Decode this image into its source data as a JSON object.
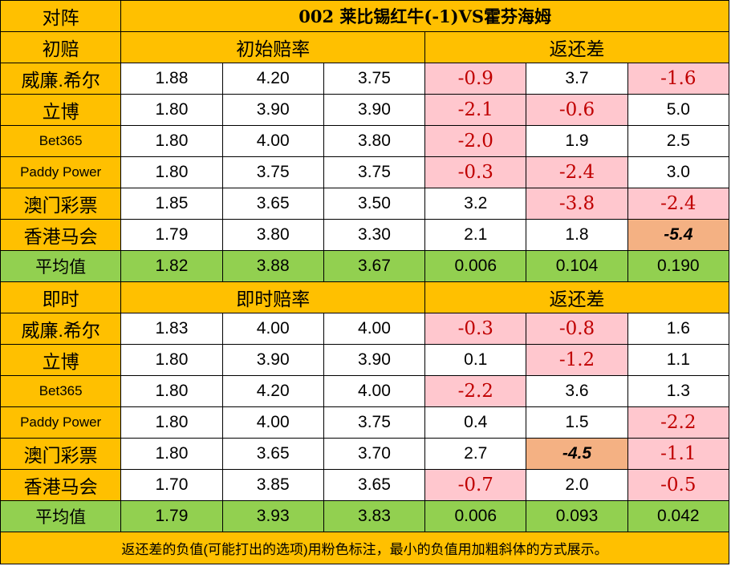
{
  "header": {
    "label": "对阵",
    "match": "002 莱比锡红牛(-1)VS霍芬海姆"
  },
  "sections": [
    {
      "label": "初赔",
      "odds_title": "初始赔率",
      "diff_title": "返还差",
      "rows": [
        {
          "name": "威廉.希尔",
          "odds": [
            "1.88",
            "4.20",
            "3.75"
          ],
          "diff": [
            "-0.9",
            "3.7",
            "-1.6"
          ]
        },
        {
          "name": "立博",
          "odds": [
            "1.80",
            "3.90",
            "3.90"
          ],
          "diff": [
            "-2.1",
            "-0.6",
            "5.0"
          ]
        },
        {
          "name": "Bet365",
          "odds": [
            "1.80",
            "4.00",
            "3.80"
          ],
          "diff": [
            "-2.0",
            "1.9",
            "2.5"
          ]
        },
        {
          "name": "Paddy Power",
          "odds": [
            "1.80",
            "3.75",
            "3.75"
          ],
          "diff": [
            "-0.3",
            "-2.4",
            "3.0"
          ]
        },
        {
          "name": "澳门彩票",
          "odds": [
            "1.85",
            "3.65",
            "3.50"
          ],
          "diff": [
            "3.2",
            "-3.8",
            "-2.4"
          ]
        },
        {
          "name": "香港马会",
          "odds": [
            "1.79",
            "3.80",
            "3.30"
          ],
          "diff": [
            "2.1",
            "1.8",
            "-5.4"
          ]
        }
      ],
      "average": {
        "name": "平均值",
        "odds": [
          "1.82",
          "3.88",
          "3.67"
        ],
        "diff": [
          "0.006",
          "0.104",
          "0.190"
        ]
      }
    },
    {
      "label": "即时",
      "odds_title": "即时赔率",
      "diff_title": "返还差",
      "rows": [
        {
          "name": "威廉.希尔",
          "odds": [
            "1.83",
            "4.00",
            "4.00"
          ],
          "diff": [
            "-0.3",
            "-0.8",
            "1.6"
          ]
        },
        {
          "name": "立博",
          "odds": [
            "1.80",
            "3.90",
            "3.90"
          ],
          "diff": [
            "0.1",
            "-1.2",
            "1.1"
          ]
        },
        {
          "name": "Bet365",
          "odds": [
            "1.80",
            "4.20",
            "4.00"
          ],
          "diff": [
            "-2.2",
            "3.6",
            "1.3"
          ]
        },
        {
          "name": "Paddy Power",
          "odds": [
            "1.80",
            "4.00",
            "3.75"
          ],
          "diff": [
            "0.4",
            "1.5",
            "-2.2"
          ]
        },
        {
          "name": "澳门彩票",
          "odds": [
            "1.80",
            "3.65",
            "3.70"
          ],
          "diff": [
            "2.7",
            "-4.5",
            "-1.1"
          ]
        },
        {
          "name": "香港马会",
          "odds": [
            "1.70",
            "3.85",
            "3.65"
          ],
          "diff": [
            "-0.7",
            "2.0",
            "-0.5"
          ]
        }
      ],
      "average": {
        "name": "平均值",
        "odds": [
          "1.79",
          "3.93",
          "3.83"
        ],
        "diff": [
          "0.006",
          "0.093",
          "0.042"
        ]
      }
    }
  ],
  "footer": "返还差的负值(可能打出的选项)用粉色标注，最小的负值用加粗斜体的方式展示。"
}
